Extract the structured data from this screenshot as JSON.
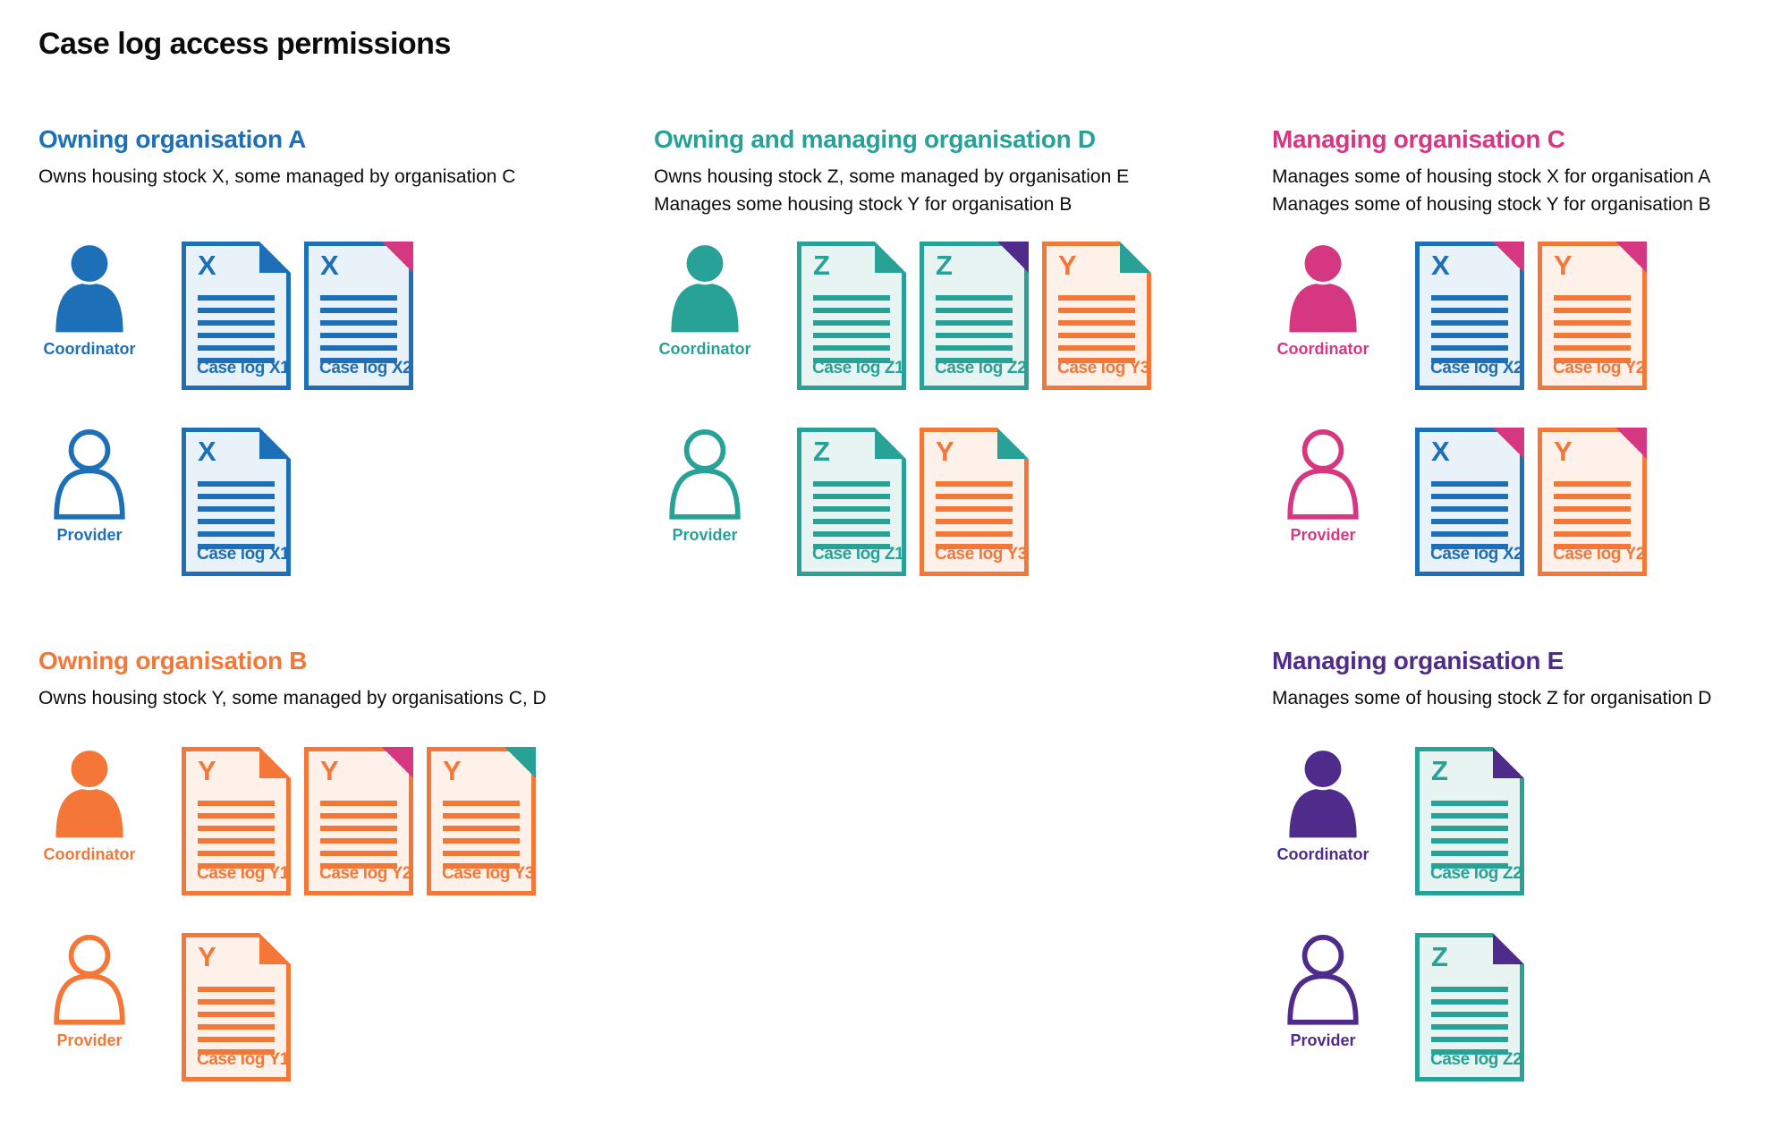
{
  "page_title": "Case log access permissions",
  "colors": {
    "text": "#0b0c0c",
    "blue": "#1d70b8",
    "teal": "#28a197",
    "pink": "#d53880",
    "orange": "#f47738",
    "purple": "#4f2c8c",
    "blue_tint": "#e9f1f9",
    "teal_tint": "#e7f4f2",
    "orange_tint": "#fdf1ea"
  },
  "roles": {
    "coordinator": "Coordinator",
    "provider": "Provider"
  },
  "sections": [
    {
      "id": "owning-organisation-a",
      "title": "Owning organisation A",
      "color": "blue",
      "subtitle_lines": [
        "Owns housing stock X, some managed by organisation C"
      ],
      "rows": [
        {
          "role": "Coordinator",
          "icon": "person-filled-icon",
          "docs": [
            {
              "letter": "X",
              "label": "Case log X1",
              "palette": "blue",
              "fold": "blue",
              "fold_style": "flap"
            },
            {
              "letter": "X",
              "label": "Case log X2",
              "palette": "blue",
              "fold": "pink",
              "fold_style": "solid"
            }
          ]
        },
        {
          "role": "Provider",
          "icon": "person-outline-icon",
          "docs": [
            {
              "letter": "X",
              "label": "Case log X1",
              "palette": "blue",
              "fold": "blue",
              "fold_style": "flap"
            }
          ]
        }
      ]
    },
    {
      "id": "owning-and-managing-organisation-d",
      "title": "Owning and managing organisation D",
      "color": "teal",
      "subtitle_lines": [
        "Owns housing stock Z, some managed by organisation E",
        "Manages some housing stock Y for organisation B"
      ],
      "rows": [
        {
          "role": "Coordinator",
          "icon": "person-filled-icon",
          "docs": [
            {
              "letter": "Z",
              "label": "Case log Z1",
              "palette": "teal",
              "fold": "teal",
              "fold_style": "flap"
            },
            {
              "letter": "Z",
              "label": "Case log Z2",
              "palette": "teal",
              "fold": "purple",
              "fold_style": "solid"
            },
            {
              "letter": "Y",
              "label": "Case log Y3",
              "palette": "orange",
              "fold": "teal",
              "fold_style": "flap"
            }
          ]
        },
        {
          "role": "Provider",
          "icon": "person-outline-icon",
          "docs": [
            {
              "letter": "Z",
              "label": "Case log Z1",
              "palette": "teal",
              "fold": "teal",
              "fold_style": "flap"
            },
            {
              "letter": "Y",
              "label": "Case log Y3",
              "palette": "orange",
              "fold": "teal",
              "fold_style": "flap"
            }
          ]
        }
      ]
    },
    {
      "id": "managing-organisation-c",
      "title": "Managing organisation C",
      "color": "pink",
      "subtitle_lines": [
        "Manages some of housing stock X for organisation A",
        "Manages some of housing stock Y for organisation B"
      ],
      "rows": [
        {
          "role": "Coordinator",
          "icon": "person-filled-icon",
          "docs": [
            {
              "letter": "X",
              "label": "Case log X2",
              "palette": "blue",
              "fold": "pink",
              "fold_style": "solid"
            },
            {
              "letter": "Y",
              "label": "Case log Y2",
              "palette": "orange",
              "fold": "pink",
              "fold_style": "solid"
            }
          ]
        },
        {
          "role": "Provider",
          "icon": "person-outline-icon",
          "docs": [
            {
              "letter": "X",
              "label": "Case log X2",
              "palette": "blue",
              "fold": "pink",
              "fold_style": "solid"
            },
            {
              "letter": "Y",
              "label": "Case log Y2",
              "palette": "orange",
              "fold": "pink",
              "fold_style": "solid"
            }
          ]
        }
      ]
    },
    {
      "id": "owning-organisation-b",
      "title": "Owning organisation B",
      "color": "orange",
      "subtitle_lines": [
        "Owns housing stock Y, some managed by organisations C, D"
      ],
      "rows": [
        {
          "role": "Coordinator",
          "icon": "person-filled-icon",
          "docs": [
            {
              "letter": "Y",
              "label": "Case log Y1",
              "palette": "orange",
              "fold": "orange",
              "fold_style": "flap"
            },
            {
              "letter": "Y",
              "label": "Case log Y2",
              "palette": "orange",
              "fold": "pink",
              "fold_style": "solid"
            },
            {
              "letter": "Y",
              "label": "Case log Y3",
              "palette": "orange",
              "fold": "teal",
              "fold_style": "solid"
            }
          ]
        },
        {
          "role": "Provider",
          "icon": "person-outline-icon",
          "docs": [
            {
              "letter": "Y",
              "label": "Case log Y1",
              "palette": "orange",
              "fold": "orange",
              "fold_style": "flap"
            }
          ]
        }
      ]
    },
    {
      "id": "managing-organisation-e",
      "title": "Managing organisation E",
      "color": "purple",
      "subtitle_lines": [
        "Manages some of housing stock Z for organisation D"
      ],
      "rows": [
        {
          "role": "Coordinator",
          "icon": "person-filled-icon",
          "docs": [
            {
              "letter": "Z",
              "label": "Case log Z2",
              "palette": "teal",
              "fold": "purple",
              "fold_style": "flap"
            }
          ]
        },
        {
          "role": "Provider",
          "icon": "person-outline-icon",
          "docs": [
            {
              "letter": "Z",
              "label": "Case log Z2",
              "palette": "teal",
              "fold": "purple",
              "fold_style": "flap"
            }
          ]
        }
      ]
    }
  ]
}
